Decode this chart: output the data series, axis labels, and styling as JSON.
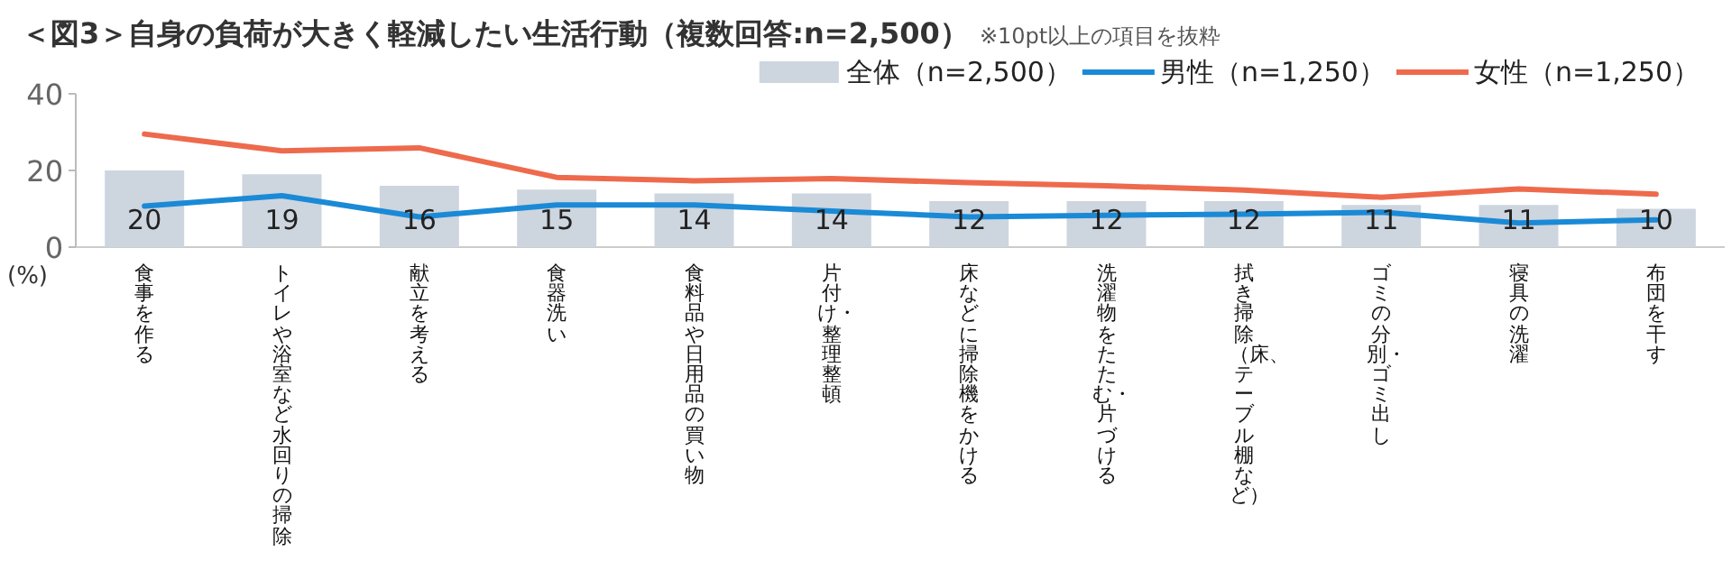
{
  "chart_data": {
    "type": "bar",
    "title": "＜図3＞自身の負荷が大きく軽減したい生活行動（複数回答:n=2,500）",
    "subtitle": "※10pt以上の項目を抜粋",
    "ylabel": "(%)",
    "categories": [
      "食事を作る",
      "トイレや浴室など水回りの掃除",
      "献立を考える",
      "食器洗い",
      "食料品や日用品の買い物",
      "片付け・整理整頓",
      "床などに掃除機をかける",
      "洗濯物をたたむ・片づける",
      "拭き掃除（床、テーブル棚など）",
      "ゴミの分別・ゴミ出し",
      "寝具の洗濯",
      "布団を干す"
    ],
    "series": [
      {
        "name": "全体（n=2,500）",
        "color": "#cdd5df",
        "values": [
          20,
          19,
          16,
          15,
          14,
          14,
          12,
          12,
          12,
          11,
          11,
          10
        ],
        "value_labels": [
          "20",
          "19",
          "16",
          "15",
          "14",
          "14",
          "12",
          "12",
          "12",
          "11",
          "11",
          "10"
        ]
      },
      {
        "name": "男性（n=1,250）",
        "type": "line",
        "color": "#1a8ad6",
        "values": [
          10.7,
          13.4,
          7.9,
          11,
          11,
          9.4,
          7.9,
          8.3,
          8.6,
          9.1,
          6.3,
          7.1
        ]
      },
      {
        "name": "女性（n=1,250）",
        "type": "line",
        "color": "#ee6a4c",
        "values": [
          29.5,
          25.1,
          25.9,
          18.2,
          17.3,
          17.9,
          16.8,
          16,
          14.9,
          13,
          15.2,
          13.8
        ]
      }
    ],
    "ylim": [
      0,
      40
    ],
    "yticks": [
      0,
      20,
      40
    ],
    "grid": false,
    "legend": "top right"
  }
}
